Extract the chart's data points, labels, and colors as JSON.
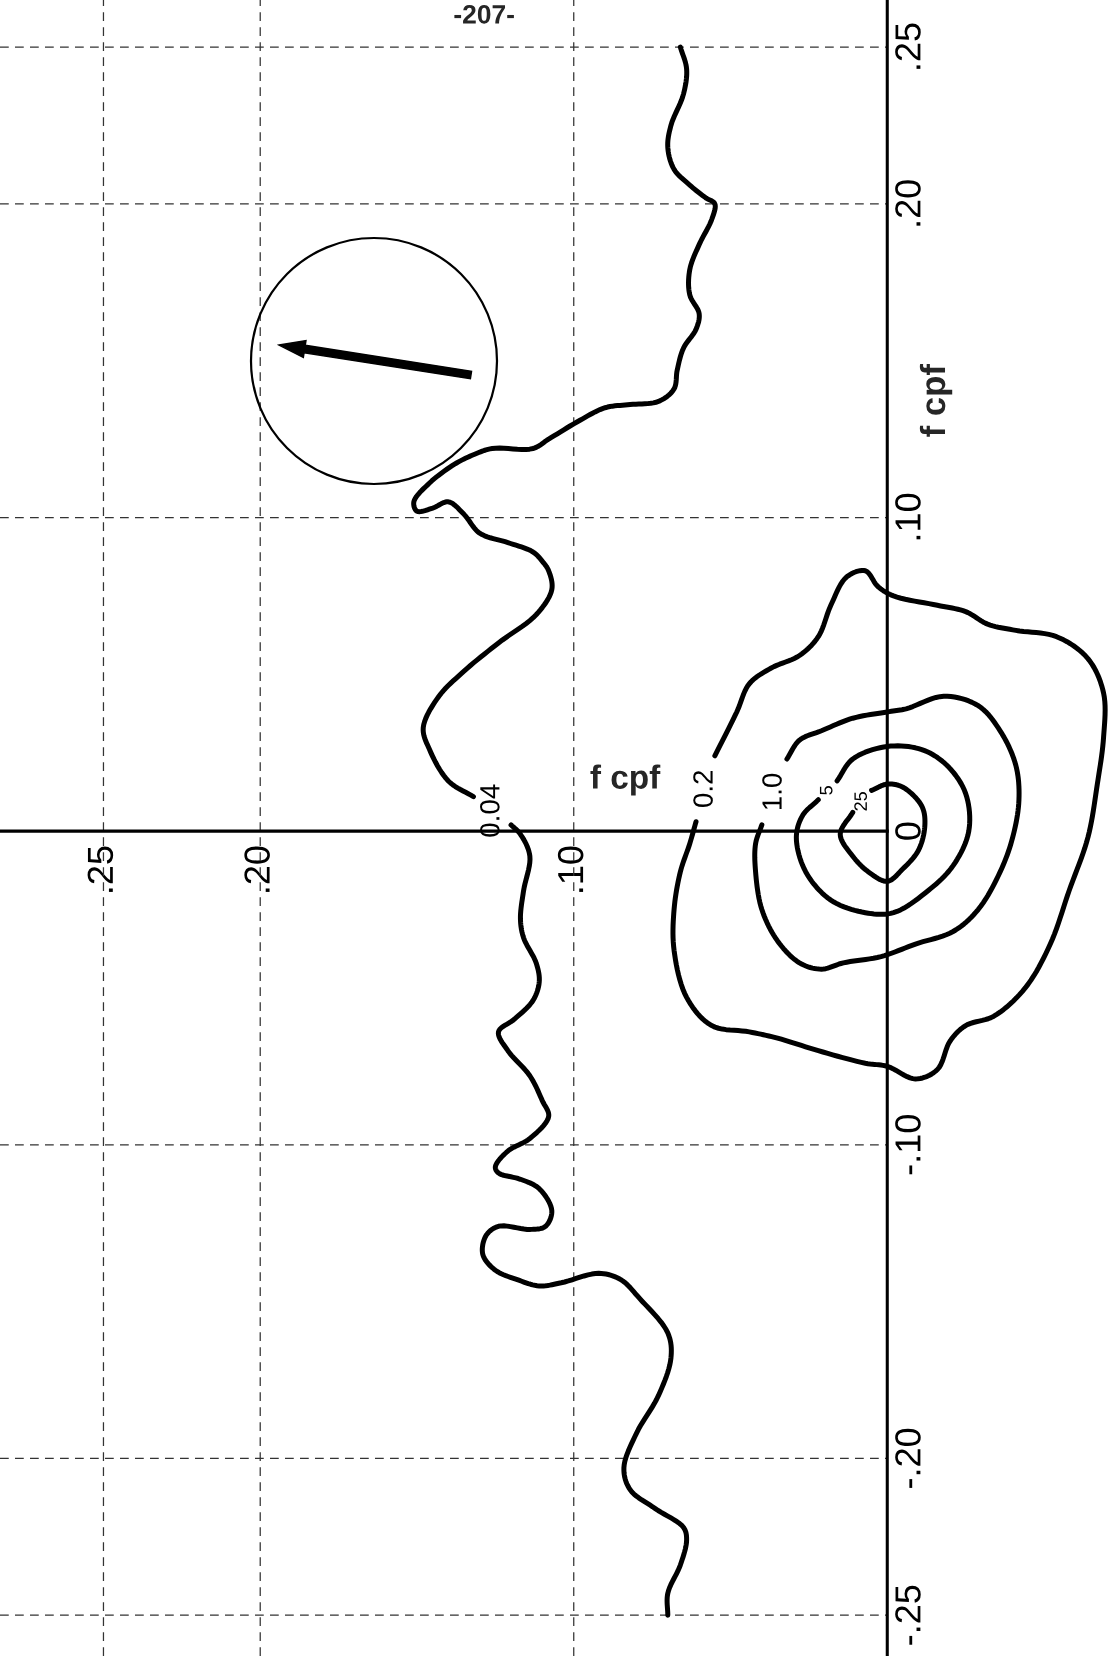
{
  "chart_data": {
    "type": "line",
    "xlabel": "f cpf",
    "ylabel": "f cpf",
    "annotations": [
      "-207-"
    ],
    "xlim": [
      0.283,
      -0.072
    ],
    "ylim": [
      -0.263,
      0.265
    ],
    "xticks": [
      {
        "value": 0.25,
        "label": ".25"
      },
      {
        "value": 0.2,
        "label": ".20"
      },
      {
        "value": 0.1,
        "label": ".10"
      }
    ],
    "yticks": [
      {
        "value": 0.25,
        "label": ".25"
      },
      {
        "value": 0.2,
        "label": ".20"
      },
      {
        "value": 0.1,
        "label": ".10"
      },
      0,
      {
        "value": -0.1,
        "label": "-.10"
      },
      {
        "value": -0.2,
        "label": "-.20"
      },
      {
        "value": -0.25,
        "label": "-.25"
      }
    ],
    "grid": true,
    "line_style": "solid",
    "series": [
      {
        "name": "0.04",
        "color": "#000000",
        "x": [
          0.066,
          0.064,
          0.065,
          0.069,
          0.07,
          0.068,
          0.063,
          0.058,
          0.055,
          0.056,
          0.06,
          0.063,
          0.063,
          0.06,
          0.061,
          0.065,
          0.067,
          0.068,
          0.073,
          0.082,
          0.09,
          0.098,
          0.108,
          0.113,
          0.126,
          0.132,
          0.138,
          0.146,
          0.151,
          0.15,
          0.145,
          0.14,
          0.135,
          0.13,
          0.121,
          0.113,
          0.11,
          0.108,
          0.107,
          0.112,
          0.124,
          0.135,
          0.143,
          0.148,
          0.146,
          0.14,
          0.132,
          null,
          0.12,
          0.117,
          0.114,
          0.116,
          0.117,
          0.116,
          0.112,
          0.111,
          0.113,
          0.119,
          0.124,
          0.121,
          0.114,
          0.11,
          0.108,
          0.114,
          0.121,
          0.125,
          0.124,
          0.117,
          0.111,
          0.107,
          0.109,
          0.114,
          0.124,
          0.128,
          0.129,
          0.125,
          0.118,
          0.111,
          0.104,
          0.092,
          0.085,
          0.079,
          0.07,
          0.069,
          0.073,
          0.08,
          0.084,
          0.082,
          0.074,
          0.065,
          0.064,
          0.066,
          0.07,
          0.07
        ],
        "values": [
          0.25,
          0.243,
          0.235,
          0.225,
          0.218,
          0.211,
          0.206,
          0.202,
          0.2,
          0.195,
          0.187,
          0.179,
          0.171,
          0.165,
          0.16,
          0.154,
          0.147,
          0.141,
          0.137,
          0.136,
          0.135,
          0.131,
          0.125,
          0.122,
          0.122,
          0.12,
          0.117,
          0.111,
          0.105,
          0.102,
          0.103,
          0.105,
          0.101,
          0.095,
          0.092,
          0.089,
          0.086,
          0.083,
          0.077,
          0.069,
          0.06,
          0.051,
          0.043,
          0.033,
          0.026,
          0.016,
          0.011,
          null,
          0.002,
          -0.001,
          -0.008,
          -0.019,
          -0.028,
          -0.034,
          -0.042,
          -0.048,
          -0.054,
          -0.06,
          -0.064,
          -0.07,
          -0.078,
          -0.086,
          -0.091,
          -0.098,
          -0.102,
          -0.107,
          -0.109,
          -0.111,
          -0.114,
          -0.121,
          -0.126,
          -0.127,
          -0.126,
          -0.129,
          -0.135,
          -0.14,
          -0.143,
          -0.145,
          -0.144,
          -0.141,
          -0.143,
          -0.149,
          -0.16,
          -0.168,
          -0.18,
          -0.192,
          -0.203,
          -0.21,
          -0.216,
          -0.222,
          -0.226,
          -0.234,
          -0.243,
          -0.25
        ]
      },
      {
        "name": "0.2",
        "color": "#000000",
        "x": [
          0.055,
          0.048,
          0.044,
          0.037,
          0.028,
          0.022,
          0.018,
          0.013,
          0.007,
          0.003,
          -0.002,
          -0.016,
          -0.025,
          -0.032,
          -0.041,
          -0.054,
          -0.064,
          -0.069,
          -0.069,
          -0.067,
          -0.064,
          -0.058,
          -0.052,
          -0.044,
          -0.034,
          -0.025,
          -0.02,
          -0.016,
          -0.009,
          0.0,
          0.007,
          0.022,
          0.035,
          0.044,
          0.056,
          0.064,
          0.068,
          0.068,
          0.066,
          0.063,
          0.061
        ],
        "values": [
          0.024,
          0.038,
          0.047,
          0.052,
          0.056,
          0.062,
          0.072,
          0.081,
          0.083,
          0.078,
          0.075,
          0.072,
          0.07,
          0.066,
          0.064,
          0.062,
          0.055,
          0.044,
          0.03,
          0.015,
          -0.002,
          -0.019,
          -0.036,
          -0.05,
          -0.059,
          -0.062,
          -0.067,
          -0.076,
          -0.079,
          -0.075,
          -0.074,
          -0.07,
          -0.066,
          -0.064,
          -0.062,
          -0.053,
          -0.038,
          -0.025,
          -0.013,
          -0.004,
          0.003
        ]
      },
      {
        "name": "1.0",
        "color": "#000000",
        "x": [
          0.032,
          0.028,
          0.021,
          0.011,
          0.0,
          -0.006,
          -0.018,
          -0.029,
          -0.036,
          -0.041,
          -0.042,
          -0.04,
          -0.036,
          -0.029,
          -0.021,
          -0.009,
          0.002,
          0.014,
          0.021,
          0.028,
          0.035,
          0.04,
          0.042,
          0.042,
          0.04
        ],
        "values": [
          0.023,
          0.029,
          0.032,
          0.036,
          0.038,
          0.039,
          0.043,
          0.04,
          0.032,
          0.021,
          0.01,
          -0.002,
          -0.013,
          -0.025,
          -0.032,
          -0.036,
          -0.04,
          -0.042,
          -0.044,
          -0.042,
          -0.035,
          -0.025,
          -0.013,
          -0.004,
          0.002
        ]
      },
      {
        "name": "5",
        "color": "#000000",
        "x": [
          0.016,
          0.011,
          0.0,
          -0.011,
          -0.019,
          -0.025,
          -0.026,
          -0.021,
          -0.013,
          -0.002,
          0.007,
          0.018,
          0.026,
          0.029,
          0.027,
          0.022
        ],
        "values": [
          0.016,
          0.023,
          0.027,
          0.026,
          0.021,
          0.012,
          0.0,
          -0.011,
          -0.019,
          -0.026,
          -0.026,
          -0.022,
          -0.013,
          -0.002,
          0.005,
          0.01
        ]
      },
      {
        "name": "25",
        "color": "#000000",
        "x": [
          0.005,
          0.0,
          -0.005,
          -0.011,
          -0.012,
          -0.01,
          -0.005,
          0.0,
          0.006,
          0.011,
          0.015,
          0.011
        ],
        "values": [
          0.013,
          0.015,
          0.014,
          0.008,
          0.002,
          -0.006,
          -0.012,
          -0.016,
          -0.013,
          -0.008,
          -0.001,
          0.006
        ]
      }
    ]
  }
}
